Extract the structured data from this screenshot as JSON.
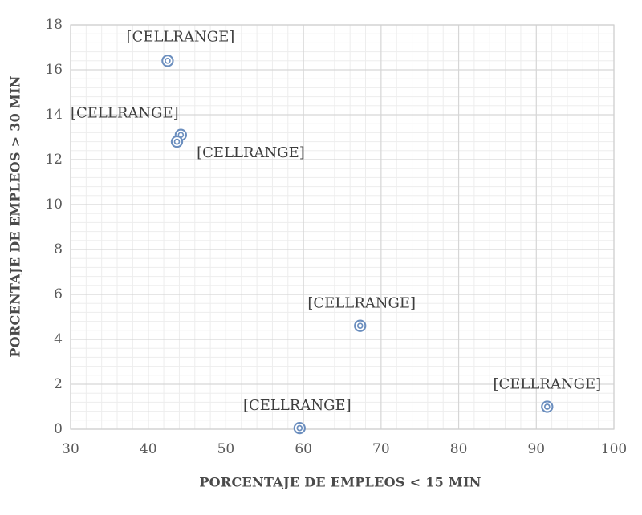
{
  "chart_data": {
    "type": "scatter",
    "title": "",
    "xlabel": "PORCENTAJE DE EMPLEOS < 15 MIN",
    "ylabel": "PORCENTAJE DE EMPLEOS > 30 MIN",
    "xlim": [
      30,
      100
    ],
    "ylim": [
      0,
      18
    ],
    "x_ticks": [
      30,
      40,
      50,
      60,
      70,
      80,
      90,
      100
    ],
    "y_ticks": [
      0,
      2,
      4,
      6,
      8,
      10,
      12,
      14,
      16,
      18
    ],
    "x_minor_step": 2,
    "y_minor_step": 0.4,
    "grid": "major and minor gridlines on both axes",
    "legend_position": "none",
    "marker_style": "double concentric circle rings",
    "series": [
      {
        "name": "",
        "points": [
          {
            "x": 42.5,
            "y": 16.4,
            "label": "[CELLRANGE]",
            "label_dx": 16,
            "label_dy": -30
          },
          {
            "x": 44.2,
            "y": 13.1,
            "label": "[CELLRANGE]",
            "label_dx": -70,
            "label_dy": -27
          },
          {
            "x": 43.7,
            "y": 12.8,
            "label": "[CELLRANGE]",
            "label_dx": 92,
            "label_dy": 14
          },
          {
            "x": 67.3,
            "y": 4.6,
            "label": "[CELLRANGE]",
            "label_dx": 2,
            "label_dy": -28
          },
          {
            "x": 59.5,
            "y": 0.05,
            "label": "[CELLRANGE]",
            "label_dx": -3,
            "label_dy": -28
          },
          {
            "x": 91.4,
            "y": 1.0,
            "label": "[CELLRANGE]",
            "label_dx": 0,
            "label_dy": -28
          }
        ]
      }
    ],
    "colors": {
      "marker_stroke": "#6b8ebe",
      "marker_fill": "#ffffff",
      "grid_major": "#d6d6d6",
      "grid_minor": "#ededed",
      "plot_border": "#cfcfcf",
      "tick_text": "#595959",
      "data_label_text": "#3d3d3d",
      "axis_title_text": "#4a4a4a",
      "background": "#ffffff"
    }
  }
}
